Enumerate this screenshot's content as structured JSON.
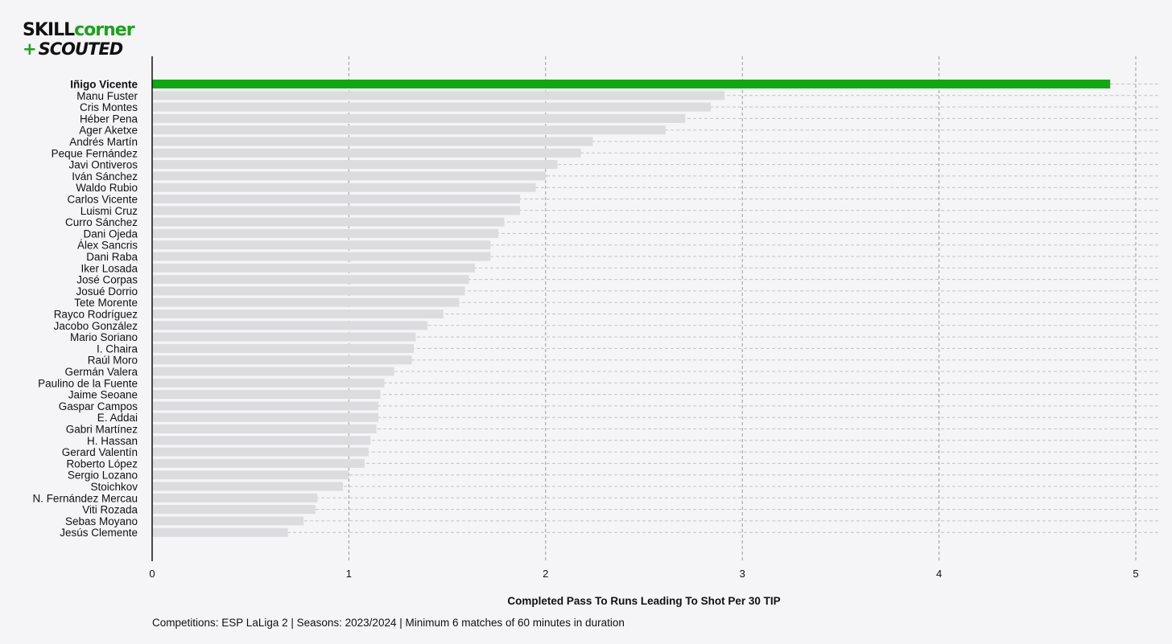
{
  "logo": {
    "word1": "SKILL",
    "word2": "corner",
    "plus": "+",
    "word3": "SCOUTED"
  },
  "colors": {
    "highlight": "#10a810",
    "bar": "#dcdbde",
    "background": "#f5f4f7",
    "grid": "#9a9a9a"
  },
  "chart_data": {
    "type": "bar",
    "orientation": "horizontal",
    "highlight": "Iñigo Vicente",
    "categories": [
      "Iñigo Vicente",
      "Manu Fuster",
      "Cris Montes",
      "Héber Pena",
      "Ager Aketxe",
      "Andrés Martín",
      "Peque Fernández",
      "Javi Ontiveros",
      "Iván Sánchez",
      "Waldo Rubio",
      "Carlos Vicente",
      "Luismi Cruz",
      "Curro Sánchez",
      "Dani Ojeda",
      "Álex Sancris",
      "Dani Raba",
      "Iker Losada",
      "José Corpas",
      "Josué Dorrio",
      "Tete Morente",
      "Rayco Rodríguez",
      "Jacobo González",
      "Mario Soriano",
      "I. Chaira",
      "Raúl Moro",
      "Germán Valera",
      "Paulino de la Fuente",
      "Jaime Seoane",
      "Gaspar Campos",
      "E. Addai",
      "Gabri Martínez",
      "H. Hassan",
      "Gerard Valentín",
      "Roberto López",
      "Sergio Lozano",
      "Stoichkov",
      "N. Fernández Mercau",
      "Viti Rozada",
      "Sebas Moyano",
      "Jesús Clemente"
    ],
    "values": [
      4.87,
      2.91,
      2.84,
      2.71,
      2.61,
      2.24,
      2.18,
      2.06,
      2.0,
      1.95,
      1.87,
      1.87,
      1.79,
      1.76,
      1.72,
      1.72,
      1.64,
      1.61,
      1.59,
      1.56,
      1.48,
      1.4,
      1.34,
      1.33,
      1.32,
      1.23,
      1.18,
      1.16,
      1.15,
      1.15,
      1.14,
      1.11,
      1.1,
      1.08,
      1.0,
      0.97,
      0.84,
      0.83,
      0.77,
      0.69
    ],
    "xlim": [
      0,
      5
    ],
    "xticks": [
      "0",
      "1",
      "2",
      "3",
      "4",
      "5"
    ],
    "xlabel": "Completed Pass To Runs Leading To Shot Per 30 TIP",
    "footnote": "Competitions: ESP LaLiga 2 | Seasons: 2023/2024 | Minimum 6 matches of 60 minutes in duration",
    "grid": true
  }
}
